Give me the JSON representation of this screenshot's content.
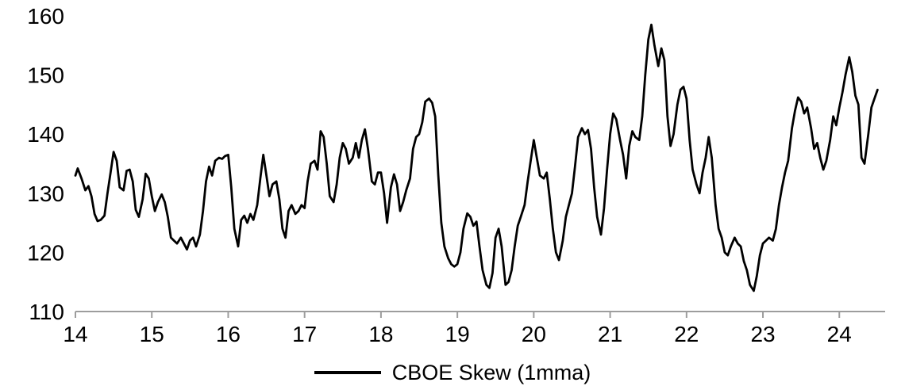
{
  "chart_data": {
    "type": "line",
    "title": "",
    "xlabel": "",
    "ylabel": "",
    "xlim": [
      14,
      24.6
    ],
    "ylim": [
      110,
      160
    ],
    "x_ticks": [
      "14",
      "15",
      "16",
      "17",
      "18",
      "19",
      "20",
      "21",
      "22",
      "23",
      "24"
    ],
    "x_tick_values": [
      14,
      15,
      16,
      17,
      18,
      19,
      20,
      21,
      22,
      23,
      24
    ],
    "y_ticks": [
      "110",
      "120",
      "130",
      "140",
      "150",
      "160"
    ],
    "y_tick_values": [
      110,
      120,
      130,
      140,
      150,
      160
    ],
    "grid": false,
    "legend_position": "bottom",
    "axis_color": "#9d9d9d",
    "text_color": "#000000",
    "series": [
      {
        "name": "CBOE Skew (1mma)",
        "color": "#000000",
        "points": [
          [
            14.0,
            133
          ],
          [
            14.03,
            134.2
          ],
          [
            14.08,
            132.5
          ],
          [
            14.13,
            130.5
          ],
          [
            14.17,
            131.2
          ],
          [
            14.21,
            129.5
          ],
          [
            14.25,
            126.5
          ],
          [
            14.29,
            125.3
          ],
          [
            14.33,
            125.5
          ],
          [
            14.38,
            126.2
          ],
          [
            14.42,
            130
          ],
          [
            14.46,
            133.5
          ],
          [
            14.5,
            137
          ],
          [
            14.54,
            135.5
          ],
          [
            14.58,
            131
          ],
          [
            14.63,
            130.5
          ],
          [
            14.67,
            133.8
          ],
          [
            14.71,
            134
          ],
          [
            14.75,
            132
          ],
          [
            14.79,
            127.2
          ],
          [
            14.83,
            126
          ],
          [
            14.88,
            129
          ],
          [
            14.92,
            133.3
          ],
          [
            14.96,
            132.5
          ],
          [
            15.0,
            129.5
          ],
          [
            15.04,
            127
          ],
          [
            15.08,
            128.5
          ],
          [
            15.13,
            129.8
          ],
          [
            15.17,
            128.5
          ],
          [
            15.21,
            126
          ],
          [
            15.25,
            122.5
          ],
          [
            15.29,
            122
          ],
          [
            15.33,
            121.5
          ],
          [
            15.38,
            122.5
          ],
          [
            15.42,
            121.5
          ],
          [
            15.46,
            120.5
          ],
          [
            15.5,
            122
          ],
          [
            15.54,
            122.5
          ],
          [
            15.58,
            121
          ],
          [
            15.63,
            123
          ],
          [
            15.67,
            127
          ],
          [
            15.71,
            132
          ],
          [
            15.75,
            134.5
          ],
          [
            15.79,
            133
          ],
          [
            15.83,
            135.5
          ],
          [
            15.88,
            136
          ],
          [
            15.92,
            135.8
          ],
          [
            15.96,
            136.3
          ],
          [
            16.0,
            136.5
          ],
          [
            16.04,
            131
          ],
          [
            16.08,
            124
          ],
          [
            16.13,
            121
          ],
          [
            16.17,
            125.5
          ],
          [
            16.21,
            126.2
          ],
          [
            16.25,
            125
          ],
          [
            16.29,
            126.5
          ],
          [
            16.33,
            125.5
          ],
          [
            16.38,
            128
          ],
          [
            16.42,
            132.5
          ],
          [
            16.46,
            136.5
          ],
          [
            16.5,
            133
          ],
          [
            16.54,
            129.5
          ],
          [
            16.58,
            131.5
          ],
          [
            16.63,
            132
          ],
          [
            16.67,
            129
          ],
          [
            16.71,
            124
          ],
          [
            16.75,
            122.5
          ],
          [
            16.79,
            127
          ],
          [
            16.83,
            128
          ],
          [
            16.88,
            126.5
          ],
          [
            16.92,
            127
          ],
          [
            16.96,
            128
          ],
          [
            17.0,
            127.5
          ],
          [
            17.04,
            132
          ],
          [
            17.08,
            135
          ],
          [
            17.13,
            135.5
          ],
          [
            17.17,
            134
          ],
          [
            17.21,
            140.5
          ],
          [
            17.25,
            139.5
          ],
          [
            17.29,
            135
          ],
          [
            17.33,
            129.5
          ],
          [
            17.38,
            128.5
          ],
          [
            17.42,
            131.5
          ],
          [
            17.46,
            136
          ],
          [
            17.5,
            138.5
          ],
          [
            17.54,
            137.5
          ],
          [
            17.58,
            135
          ],
          [
            17.63,
            136
          ],
          [
            17.67,
            138.5
          ],
          [
            17.71,
            136
          ],
          [
            17.75,
            139
          ],
          [
            17.79,
            140.8
          ],
          [
            17.83,
            137.5
          ],
          [
            17.88,
            132
          ],
          [
            17.92,
            131.5
          ],
          [
            17.96,
            133.5
          ],
          [
            18.0,
            133.5
          ],
          [
            18.04,
            130
          ],
          [
            18.08,
            125
          ],
          [
            18.13,
            131
          ],
          [
            18.17,
            133.2
          ],
          [
            18.21,
            131.5
          ],
          [
            18.25,
            127
          ],
          [
            18.29,
            128.5
          ],
          [
            18.33,
            130.5
          ],
          [
            18.38,
            132.5
          ],
          [
            18.42,
            137.5
          ],
          [
            18.46,
            139.5
          ],
          [
            18.5,
            140
          ],
          [
            18.54,
            142
          ],
          [
            18.58,
            145.5
          ],
          [
            18.63,
            146
          ],
          [
            18.67,
            145.3
          ],
          [
            18.71,
            143
          ],
          [
            18.75,
            133
          ],
          [
            18.79,
            125
          ],
          [
            18.83,
            121
          ],
          [
            18.88,
            119
          ],
          [
            18.92,
            118
          ],
          [
            18.96,
            117.6
          ],
          [
            19.0,
            118
          ],
          [
            19.04,
            120
          ],
          [
            19.08,
            124
          ],
          [
            19.13,
            126.6
          ],
          [
            19.17,
            126
          ],
          [
            19.21,
            124.5
          ],
          [
            19.25,
            125.2
          ],
          [
            19.29,
            121
          ],
          [
            19.33,
            117
          ],
          [
            19.38,
            114.5
          ],
          [
            19.42,
            114
          ],
          [
            19.46,
            116.5
          ],
          [
            19.5,
            122.5
          ],
          [
            19.54,
            124
          ],
          [
            19.58,
            121
          ],
          [
            19.63,
            114.5
          ],
          [
            19.67,
            115
          ],
          [
            19.71,
            117
          ],
          [
            19.75,
            121
          ],
          [
            19.79,
            124.5
          ],
          [
            19.83,
            126
          ],
          [
            19.88,
            128
          ],
          [
            19.92,
            132
          ],
          [
            19.96,
            135.5
          ],
          [
            20.0,
            139
          ],
          [
            20.04,
            136
          ],
          [
            20.08,
            133
          ],
          [
            20.13,
            132.5
          ],
          [
            20.17,
            133.5
          ],
          [
            20.21,
            129
          ],
          [
            20.25,
            124
          ],
          [
            20.29,
            120
          ],
          [
            20.33,
            118.7
          ],
          [
            20.38,
            122
          ],
          [
            20.42,
            126
          ],
          [
            20.46,
            128
          ],
          [
            20.5,
            130
          ],
          [
            20.54,
            134.5
          ],
          [
            20.58,
            139.5
          ],
          [
            20.63,
            141
          ],
          [
            20.67,
            140
          ],
          [
            20.71,
            140.7
          ],
          [
            20.75,
            137.5
          ],
          [
            20.79,
            131
          ],
          [
            20.83,
            126
          ],
          [
            20.88,
            123
          ],
          [
            20.92,
            127.5
          ],
          [
            20.96,
            134
          ],
          [
            21.0,
            140
          ],
          [
            21.04,
            143.5
          ],
          [
            21.08,
            142.5
          ],
          [
            21.13,
            139
          ],
          [
            21.17,
            136.5
          ],
          [
            21.21,
            132.5
          ],
          [
            21.25,
            138
          ],
          [
            21.29,
            140.5
          ],
          [
            21.33,
            139.5
          ],
          [
            21.38,
            139
          ],
          [
            21.42,
            143
          ],
          [
            21.46,
            150
          ],
          [
            21.5,
            156
          ],
          [
            21.54,
            158.5
          ],
          [
            21.58,
            155
          ],
          [
            21.63,
            151.5
          ],
          [
            21.67,
            154.5
          ],
          [
            21.71,
            152.5
          ],
          [
            21.75,
            143
          ],
          [
            21.79,
            138
          ],
          [
            21.83,
            140
          ],
          [
            21.88,
            145
          ],
          [
            21.92,
            147.5
          ],
          [
            21.96,
            148
          ],
          [
            22.0,
            146
          ],
          [
            22.04,
            139
          ],
          [
            22.08,
            134
          ],
          [
            22.13,
            131.5
          ],
          [
            22.17,
            130
          ],
          [
            22.21,
            133.5
          ],
          [
            22.25,
            136
          ],
          [
            22.29,
            139.5
          ],
          [
            22.33,
            136
          ],
          [
            22.38,
            128
          ],
          [
            22.42,
            124
          ],
          [
            22.46,
            122.5
          ],
          [
            22.5,
            120
          ],
          [
            22.54,
            119.5
          ],
          [
            22.58,
            121
          ],
          [
            22.63,
            122.5
          ],
          [
            22.67,
            121.5
          ],
          [
            22.71,
            121
          ],
          [
            22.75,
            118.5
          ],
          [
            22.79,
            117
          ],
          [
            22.83,
            114.5
          ],
          [
            22.88,
            113.5
          ],
          [
            22.92,
            116
          ],
          [
            22.96,
            119.5
          ],
          [
            23.0,
            121.5
          ],
          [
            23.04,
            122
          ],
          [
            23.08,
            122.5
          ],
          [
            23.13,
            122
          ],
          [
            23.17,
            124
          ],
          [
            23.21,
            128
          ],
          [
            23.25,
            131
          ],
          [
            23.29,
            133.5
          ],
          [
            23.33,
            135.5
          ],
          [
            23.38,
            141
          ],
          [
            23.42,
            144
          ],
          [
            23.46,
            146.2
          ],
          [
            23.5,
            145.5
          ],
          [
            23.54,
            143.5
          ],
          [
            23.58,
            144.5
          ],
          [
            23.63,
            141
          ],
          [
            23.67,
            137.5
          ],
          [
            23.71,
            138.5
          ],
          [
            23.75,
            136
          ],
          [
            23.79,
            134
          ],
          [
            23.83,
            135.5
          ],
          [
            23.88,
            139
          ],
          [
            23.92,
            143
          ],
          [
            23.96,
            141.5
          ],
          [
            24.0,
            144.5
          ],
          [
            24.04,
            147
          ],
          [
            24.08,
            150
          ],
          [
            24.13,
            153
          ],
          [
            24.17,
            150.5
          ],
          [
            24.21,
            146.5
          ],
          [
            24.25,
            145
          ],
          [
            24.29,
            136
          ],
          [
            24.33,
            135
          ],
          [
            24.38,
            140
          ],
          [
            24.42,
            144.5
          ],
          [
            24.46,
            146
          ],
          [
            24.5,
            147.5
          ]
        ]
      }
    ]
  },
  "legend": {
    "label": "CBOE Skew (1mma)"
  }
}
